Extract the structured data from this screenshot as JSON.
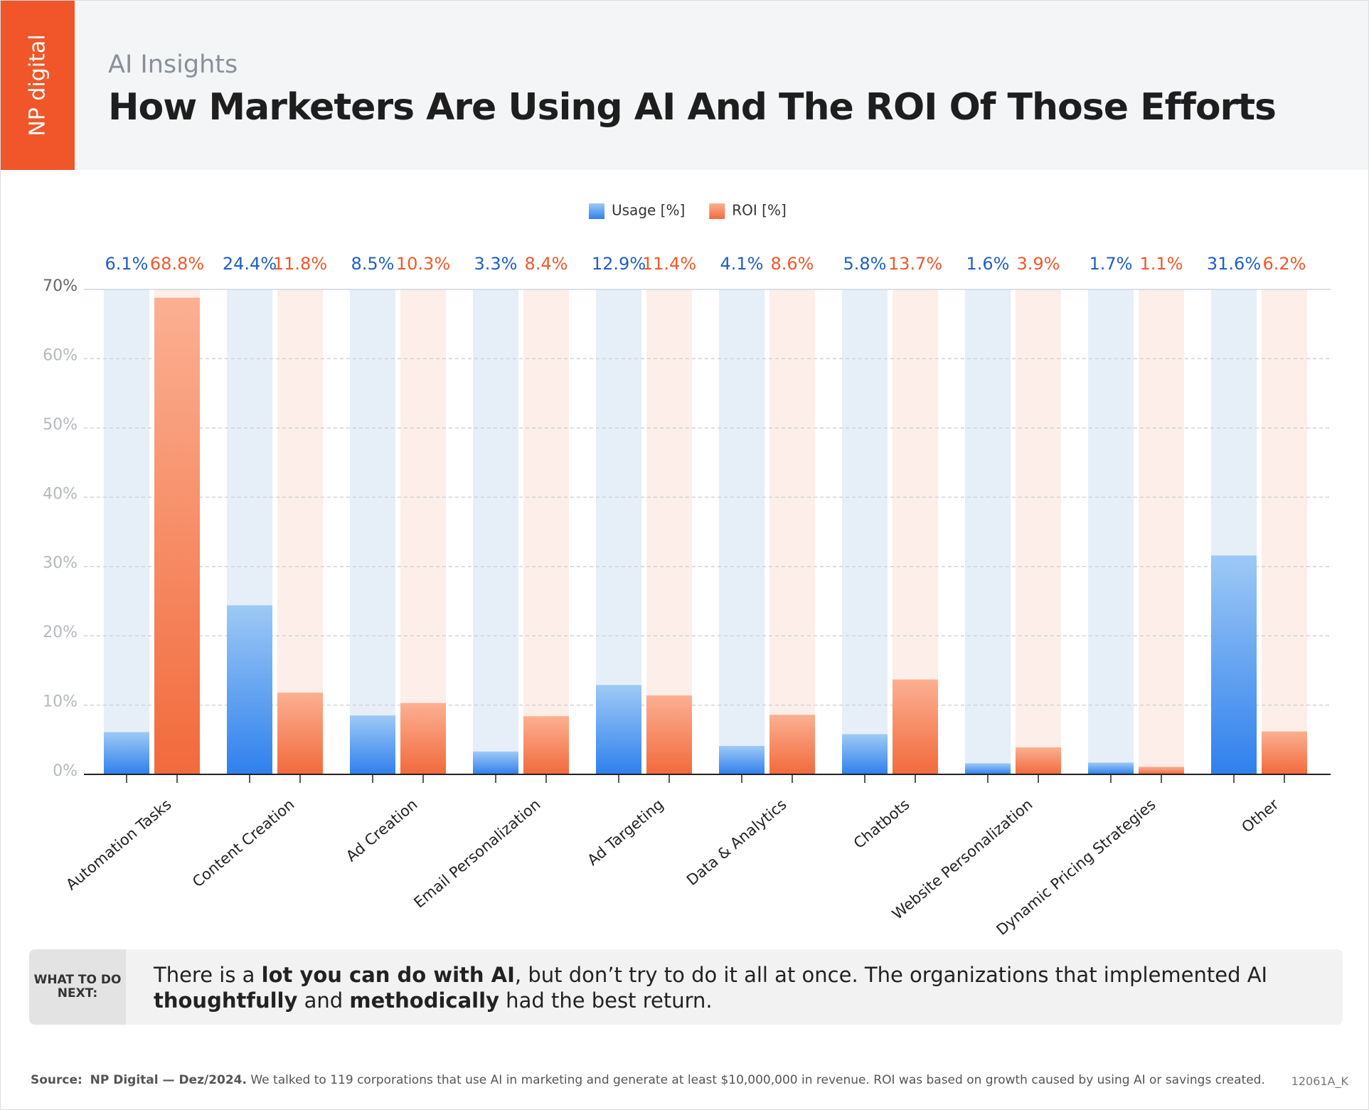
{
  "logo": "NP digital",
  "header": {
    "subtitle": "AI Insights",
    "title": "How Marketers Are Using AI And The ROI Of Those Efforts"
  },
  "chart_data": {
    "type": "bar",
    "categories": [
      "Automation Tasks",
      "Content Creation",
      "Ad Creation",
      "Email Personalization",
      "Ad Targeting",
      "Data & Analytics",
      "Chatbots",
      "Website Personalization",
      "Dynamic Pricing Strategies",
      "Other"
    ],
    "series": [
      {
        "name": "Usage [%]",
        "color": "#2f80ed",
        "values": [
          6.1,
          24.4,
          8.5,
          3.3,
          12.9,
          4.1,
          5.8,
          1.6,
          1.7,
          31.6
        ],
        "value_labels": [
          "6.1%",
          "24.4%",
          "8.5%",
          "3.3%",
          "12.9%",
          "4.1%",
          "5.8%",
          "1.6%",
          "1.7%",
          "31.6%"
        ]
      },
      {
        "name": "ROI [%]",
        "color": "#f26a3c",
        "values": [
          68.8,
          11.8,
          10.3,
          8.4,
          11.4,
          8.6,
          13.7,
          3.9,
          1.1,
          6.2
        ],
        "value_labels": [
          "68.8%",
          "11.8%",
          "10.3%",
          "8.4%",
          "11.4%",
          "8.6%",
          "13.7%",
          "3.9%",
          "1.1%",
          "6.2%"
        ]
      }
    ],
    "ylim": [
      0,
      70
    ],
    "yticks": [
      {
        "value": 0,
        "label": "0%"
      },
      {
        "value": 10,
        "label": "10%"
      },
      {
        "value": 20,
        "label": "20%"
      },
      {
        "value": 30,
        "label": "30%"
      },
      {
        "value": 40,
        "label": "40%"
      },
      {
        "value": 50,
        "label": "50%"
      },
      {
        "value": 60,
        "label": "60%"
      },
      {
        "value": 70,
        "label": "70%"
      }
    ],
    "grid": true,
    "legend": "top"
  },
  "note": {
    "label": "WHAT TO DO NEXT:",
    "segments": [
      {
        "text": "There is a ",
        "bold": false
      },
      {
        "text": "lot you can do with AI",
        "bold": true
      },
      {
        "text": ", but don’t try to do it all at once. The organizations that implemented AI ",
        "bold": false
      },
      {
        "text": "thoughtfully",
        "bold": true
      },
      {
        "text": " and ",
        "bold": false
      },
      {
        "text": "methodically",
        "bold": true
      },
      {
        "text": " had the best return.",
        "bold": false
      }
    ]
  },
  "footer": {
    "source_label": "Source:",
    "source": "NP Digital — Dez/2024.",
    "text": " We talked to 119 corporations that use AI in marketing and generate at least $10,000,000 in revenue. ROI was based on growth caused by using AI or savings created.",
    "code": "12061A_K"
  }
}
